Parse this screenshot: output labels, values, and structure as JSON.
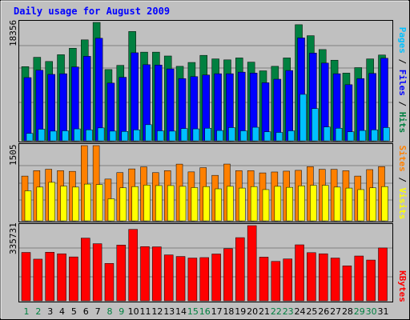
{
  "chart_data": {
    "type": "bar",
    "title": "Daily usage for August 2009",
    "categories": [
      "1",
      "2",
      "3",
      "4",
      "5",
      "6",
      "7",
      "8",
      "9",
      "10",
      "11",
      "12",
      "13",
      "14",
      "15",
      "16",
      "17",
      "18",
      "19",
      "20",
      "21",
      "22",
      "23",
      "24",
      "25",
      "26",
      "27",
      "28",
      "29",
      "30",
      "31"
    ],
    "weekend_days": [
      "1",
      "2",
      "8",
      "9",
      "15",
      "16",
      "22",
      "23",
      "29",
      "30"
    ],
    "panels": [
      {
        "id": "hits",
        "top_label": "18356",
        "ymax": 18356,
        "side_labels": [
          {
            "text": "Pages",
            "color": "#00c0ff"
          },
          {
            "text": "Files",
            "color": "#0000ff"
          },
          {
            "text": "Hits",
            "color": "#008040"
          }
        ],
        "series": [
          {
            "name": "Hits",
            "color": "#008040",
            "values": [
              11500,
              12950,
              12300,
              13350,
              14350,
              15650,
              18356,
              11050,
              11700,
              16950,
              13750,
              13750,
              13150,
              11550,
              12150,
              13250,
              12700,
              12550,
              12850,
              12200,
              10850,
              11550,
              12850,
              18000,
              16300,
              14150,
              12500,
              10500,
              11350,
              12700,
              13300
            ]
          },
          {
            "name": "Files",
            "color": "#0000ff",
            "values": [
              9800,
              10950,
              10300,
              10400,
              11450,
              13100,
              15900,
              8950,
              9850,
              13650,
              11800,
              11750,
              11150,
              9650,
              9950,
              10200,
              10400,
              10400,
              10650,
              10500,
              9000,
              9550,
              10900,
              15950,
              13600,
              12050,
              10400,
              8700,
              9650,
              10450,
              12800
            ]
          },
          {
            "name": "Pages",
            "color": "#00c0ff",
            "values": [
              1150,
              1800,
              1500,
              1550,
              1850,
              1700,
              2000,
              1500,
              1450,
              1700,
              2500,
              1550,
              1500,
              1900,
              1850,
              1950,
              1600,
              2050,
              1550,
              2100,
              1400,
              1300,
              1550,
              7200,
              5000,
              2150,
              1950,
              1400,
              1600,
              1700,
              2050
            ]
          }
        ]
      },
      {
        "id": "visits",
        "top_label": "1505",
        "ymax": 1505,
        "side_labels": [
          {
            "text": "Sites",
            "color": "#ff8000"
          },
          {
            "text": "Visits",
            "color": "#ffff00"
          }
        ],
        "series": [
          {
            "name": "Visits",
            "color": "#ff8000",
            "values": [
              895,
              1004,
              1032,
              1004,
              990,
              1505,
              1505,
              835,
              965,
              1039,
              1079,
              964,
              1004,
              1135,
              979,
              1064,
              910,
              1136,
              1004,
              1004,
              959,
              977,
              994,
              1010,
              1084,
              1030,
              1030,
              1002,
              895,
              1025,
              1085
            ]
          },
          {
            "name": "Sites",
            "color": "#ffff00",
            "values": [
              600,
              675,
              770,
              695,
              675,
              735,
              725,
              440,
              660,
              685,
              715,
              705,
              705,
              690,
              665,
              685,
              640,
              690,
              655,
              685,
              625,
              690,
              670,
              700,
              710,
              710,
              675,
              655,
              625,
              660,
              685
            ]
          }
        ]
      },
      {
        "id": "kbytes",
        "top_label": "335731",
        "ymax": 335731,
        "side_labels": [
          {
            "text": "KBytes",
            "color": "#ff0000"
          }
        ],
        "series": [
          {
            "name": "KBytes",
            "color": "#ff0000",
            "values": [
              216000,
              186000,
              217000,
              210000,
              196000,
              280000,
              255000,
              167000,
              249000,
              319000,
              242000,
              241000,
              205000,
              198000,
              191000,
              193000,
              209000,
              233000,
              282000,
              335731,
              195000,
              176000,
              187000,
              250000,
              215000,
              210000,
              191000,
              156000,
              200000,
              182000,
              236000
            ]
          }
        ]
      }
    ]
  }
}
